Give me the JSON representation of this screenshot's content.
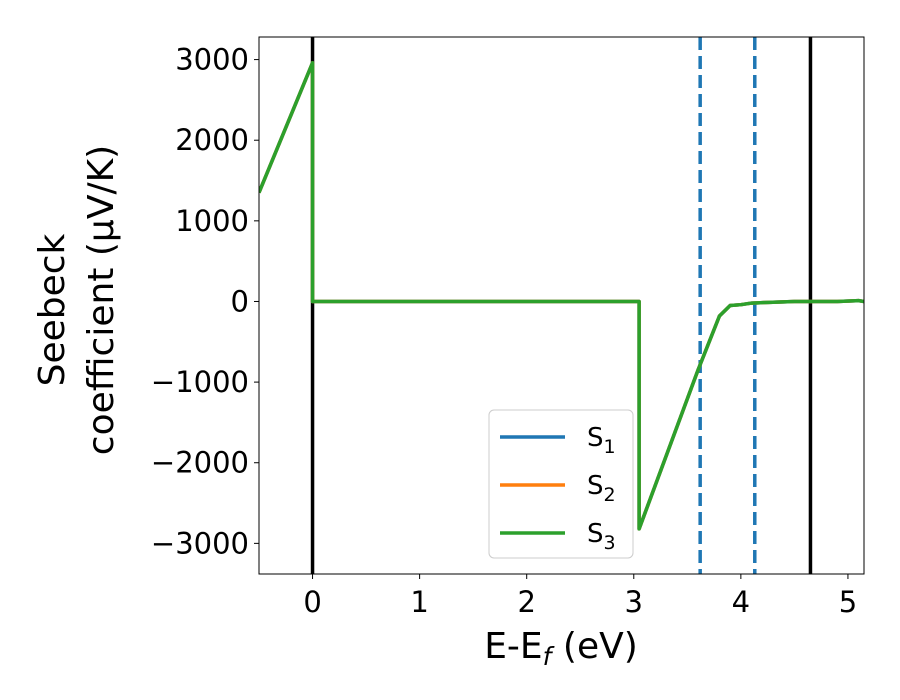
{
  "chart_data": {
    "type": "line",
    "title": "",
    "xlabel": {
      "main": "E-E",
      "sub": "f",
      "suffix": " (eV)"
    },
    "ylabel": {
      "line1": "Seebeck",
      "line2": "coefficient  (μV/K)"
    },
    "xlim": [
      -0.5,
      5.15
    ],
    "ylim": [
      -3380,
      3280
    ],
    "x_ticks": [
      0,
      1,
      2,
      3,
      4,
      5
    ],
    "y_ticks": [
      -3000,
      -2000,
      -1000,
      0,
      1000,
      2000,
      3000
    ],
    "y_tick_labels": [
      "−3000",
      "−2000",
      "−1000",
      "0",
      "1000",
      "2000",
      "3000"
    ],
    "legend_position": "lower-center",
    "grid": false,
    "series": [
      {
        "name": "S",
        "sub": "1",
        "color": "#1f77b4",
        "x": [
          -0.5,
          0.0,
          0.0,
          3.05,
          3.05,
          3.6,
          3.8,
          3.9,
          4.0,
          4.1,
          4.3,
          4.5,
          4.7,
          4.9,
          5.1,
          5.15
        ],
        "y": [
          1350,
          2960,
          0,
          0,
          -2820,
          -850,
          -180,
          -50,
          -40,
          -20,
          -10,
          0,
          0,
          0,
          10,
          0
        ]
      },
      {
        "name": "S",
        "sub": "2",
        "color": "#ff7f0e",
        "x": [
          -0.5,
          0.0,
          0.0,
          3.05,
          3.05,
          3.6,
          3.8,
          3.9,
          4.0,
          4.1,
          4.3,
          4.5,
          4.7,
          4.9,
          5.1,
          5.15
        ],
        "y": [
          1350,
          2960,
          0,
          0,
          -2820,
          -850,
          -180,
          -50,
          -40,
          -20,
          -10,
          0,
          0,
          0,
          10,
          0
        ]
      },
      {
        "name": "S",
        "sub": "3",
        "color": "#2ca02c",
        "x": [
          -0.5,
          0.0,
          0.0,
          3.05,
          3.05,
          3.6,
          3.8,
          3.9,
          4.0,
          4.1,
          4.3,
          4.5,
          4.7,
          4.9,
          5.1,
          5.15
        ],
        "y": [
          1350,
          2960,
          0,
          0,
          -2820,
          -850,
          -180,
          -50,
          -40,
          -20,
          -10,
          0,
          0,
          0,
          10,
          0
        ]
      }
    ],
    "vertical_lines": [
      {
        "x": 0.0,
        "style": "solid",
        "color": "#000000"
      },
      {
        "x": 4.65,
        "style": "solid",
        "color": "#000000"
      },
      {
        "x": 3.62,
        "style": "dashed",
        "color": "#1f77b4"
      },
      {
        "x": 4.13,
        "style": "dashed",
        "color": "#1f77b4"
      }
    ]
  }
}
